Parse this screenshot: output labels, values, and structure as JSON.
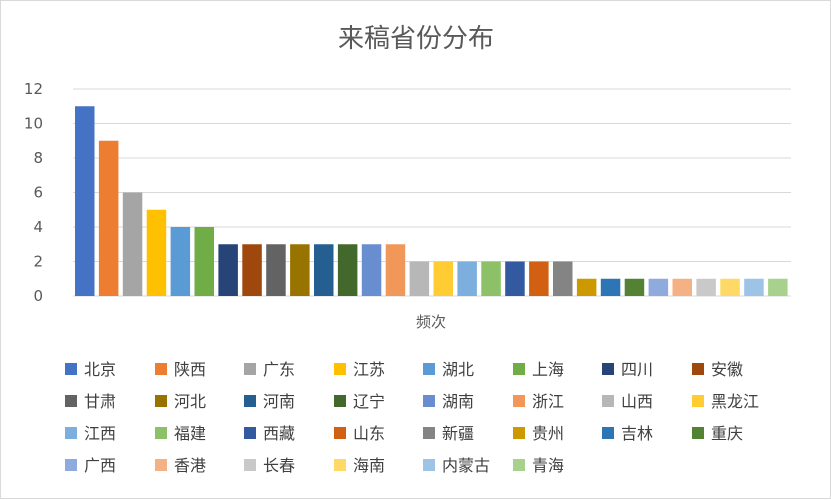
{
  "chart_data": {
    "type": "bar",
    "title": "来稿省份分布",
    "xlabel": "频次",
    "ylabel": "",
    "ylim": [
      0,
      12
    ],
    "yticks": [
      0,
      2,
      4,
      6,
      8,
      10,
      12
    ],
    "grid": true,
    "legend_position": "bottom",
    "categories": [
      "频次"
    ],
    "series": [
      {
        "name": "北京",
        "values": [
          11
        ],
        "color": "#4472C4"
      },
      {
        "name": "陕西",
        "values": [
          9
        ],
        "color": "#ED7D31"
      },
      {
        "name": "广东",
        "values": [
          6
        ],
        "color": "#A5A5A5"
      },
      {
        "name": "江苏",
        "values": [
          5
        ],
        "color": "#FFC000"
      },
      {
        "name": "湖北",
        "values": [
          4
        ],
        "color": "#5B9BD5"
      },
      {
        "name": "上海",
        "values": [
          4
        ],
        "color": "#70AD47"
      },
      {
        "name": "四川",
        "values": [
          3
        ],
        "color": "#264478"
      },
      {
        "name": "安徽",
        "values": [
          3
        ],
        "color": "#9E480E"
      },
      {
        "name": "甘肃",
        "values": [
          3
        ],
        "color": "#636363"
      },
      {
        "name": "河北",
        "values": [
          3
        ],
        "color": "#997300"
      },
      {
        "name": "河南",
        "values": [
          3
        ],
        "color": "#255E91"
      },
      {
        "name": "辽宁",
        "values": [
          3
        ],
        "color": "#43682B"
      },
      {
        "name": "湖南",
        "values": [
          3
        ],
        "color": "#698ED0"
      },
      {
        "name": "浙江",
        "values": [
          3
        ],
        "color": "#F1975A"
      },
      {
        "name": "山西",
        "values": [
          2
        ],
        "color": "#B7B7B7"
      },
      {
        "name": "黑龙江",
        "values": [
          2
        ],
        "color": "#FFCD33"
      },
      {
        "name": "江西",
        "values": [
          2
        ],
        "color": "#7CAFDD"
      },
      {
        "name": "福建",
        "values": [
          2
        ],
        "color": "#8CC168"
      },
      {
        "name": "西藏",
        "values": [
          2
        ],
        "color": "#335AA1"
      },
      {
        "name": "山东",
        "values": [
          2
        ],
        "color": "#D26012"
      },
      {
        "name": "新疆",
        "values": [
          2
        ],
        "color": "#848484"
      },
      {
        "name": "贵州",
        "values": [
          1
        ],
        "color": "#CC9A00"
      },
      {
        "name": "吉林",
        "values": [
          1
        ],
        "color": "#2E75B6"
      },
      {
        "name": "重庆",
        "values": [
          1
        ],
        "color": "#548235"
      },
      {
        "name": "广西",
        "values": [
          1
        ],
        "color": "#8FAADC"
      },
      {
        "name": "香港",
        "values": [
          1
        ],
        "color": "#F4B183"
      },
      {
        "name": "长春",
        "values": [
          1
        ],
        "color": "#C9C9C9"
      },
      {
        "name": "海南",
        "values": [
          1
        ],
        "color": "#FFD966"
      },
      {
        "name": "内蒙古",
        "values": [
          1
        ],
        "color": "#9DC3E6"
      },
      {
        "name": "青海",
        "values": [
          1
        ],
        "color": "#A9D18E"
      }
    ]
  }
}
